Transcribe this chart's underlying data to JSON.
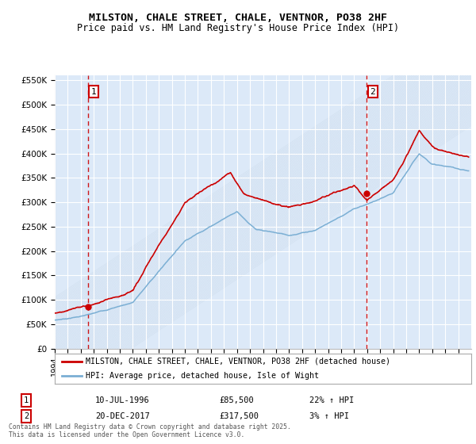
{
  "title": "MILSTON, CHALE STREET, CHALE, VENTNOR, PO38 2HF",
  "subtitle": "Price paid vs. HM Land Registry's House Price Index (HPI)",
  "ylim": [
    0,
    560000
  ],
  "yticks": [
    0,
    50000,
    100000,
    150000,
    200000,
    250000,
    300000,
    350000,
    400000,
    450000,
    500000,
    550000
  ],
  "ytick_labels": [
    "£0",
    "£50K",
    "£100K",
    "£150K",
    "£200K",
    "£250K",
    "£300K",
    "£350K",
    "£400K",
    "£450K",
    "£500K",
    "£550K"
  ],
  "background_color": "#ffffff",
  "plot_bg_color": "#dce9f8",
  "grid_color": "#ffffff",
  "hpi_color": "#7bafd4",
  "price_color": "#cc0000",
  "sale1_date": 1996.53,
  "sale1_price": 85500,
  "sale2_date": 2017.97,
  "sale2_price": 317500,
  "legend_label1": "MILSTON, CHALE STREET, CHALE, VENTNOR, PO38 2HF (detached house)",
  "legend_label2": "HPI: Average price, detached house, Isle of Wight",
  "note1_label": "1",
  "note1_date": "10-JUL-1996",
  "note1_price": "£85,500",
  "note1_hpi": "22% ↑ HPI",
  "note2_label": "2",
  "note2_date": "20-DEC-2017",
  "note2_price": "£317,500",
  "note2_hpi": "3% ↑ HPI",
  "copyright": "Contains HM Land Registry data © Crown copyright and database right 2025.\nThis data is licensed under the Open Government Licence v3.0.",
  "xmin": 1994,
  "xmax": 2026
}
